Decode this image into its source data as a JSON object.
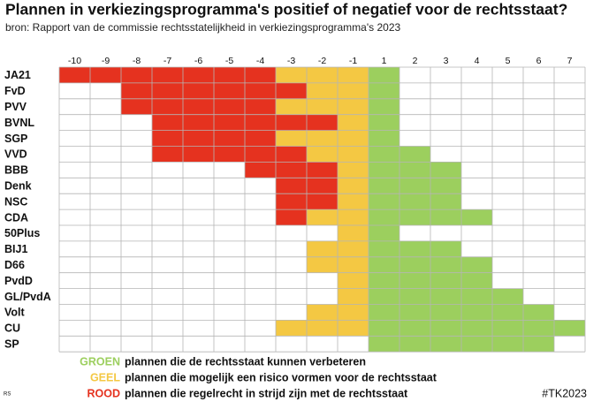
{
  "chart_data": {
    "type": "diverging-grid",
    "title": "Plannen in verkiezingsprogramma's positief of negatief voor de rechtsstaat?",
    "subtitle": "bron: Rapport van de commissie rechtsstatelijkheid in verkiezingsprogramma's 2023",
    "categories": [
      "JA21",
      "FvD",
      "PVV",
      "BVNL",
      "SGP",
      "VVD",
      "BBB",
      "Denk",
      "NSC",
      "CDA",
      "50Plus",
      "BIJ1",
      "D66",
      "PvdD",
      "GL/PvdA",
      "Volt",
      "CU",
      "SP"
    ],
    "xlim": [
      -10,
      7
    ],
    "xticks": [
      -10,
      -9,
      -8,
      -7,
      -6,
      -5,
      -4,
      -3,
      -2,
      -1,
      1,
      2,
      3,
      4,
      5,
      6,
      7
    ],
    "series": [
      {
        "name": "GROEN",
        "description": "plannen die de rechtsstaat kunnen verbeteren",
        "color": "#9ccf5e",
        "values": [
          1,
          1,
          1,
          1,
          1,
          2,
          3,
          3,
          3,
          4,
          1,
          3,
          4,
          4,
          5,
          6,
          7,
          6
        ]
      },
      {
        "name": "GEEL",
        "description": "plannen die mogelijk een risico vormen voor de rechtsstaat",
        "color": "#f4c843",
        "values": [
          -3,
          -2,
          -3,
          -1,
          -3,
          -2,
          -1,
          -1,
          -1,
          -2,
          -1,
          -2,
          -2,
          -1,
          -1,
          -2,
          -3,
          0
        ]
      },
      {
        "name": "ROOD",
        "description": "plannen die regelrecht in strijd zijn met de rechtsstaat",
        "color": "#e5321f",
        "values": [
          -7,
          -6,
          -5,
          -6,
          -4,
          -5,
          -3,
          -2,
          -2,
          -1,
          0,
          0,
          0,
          0,
          0,
          0,
          0,
          0
        ]
      }
    ],
    "source_mark": "RS",
    "hashtag": "#TK2023"
  }
}
